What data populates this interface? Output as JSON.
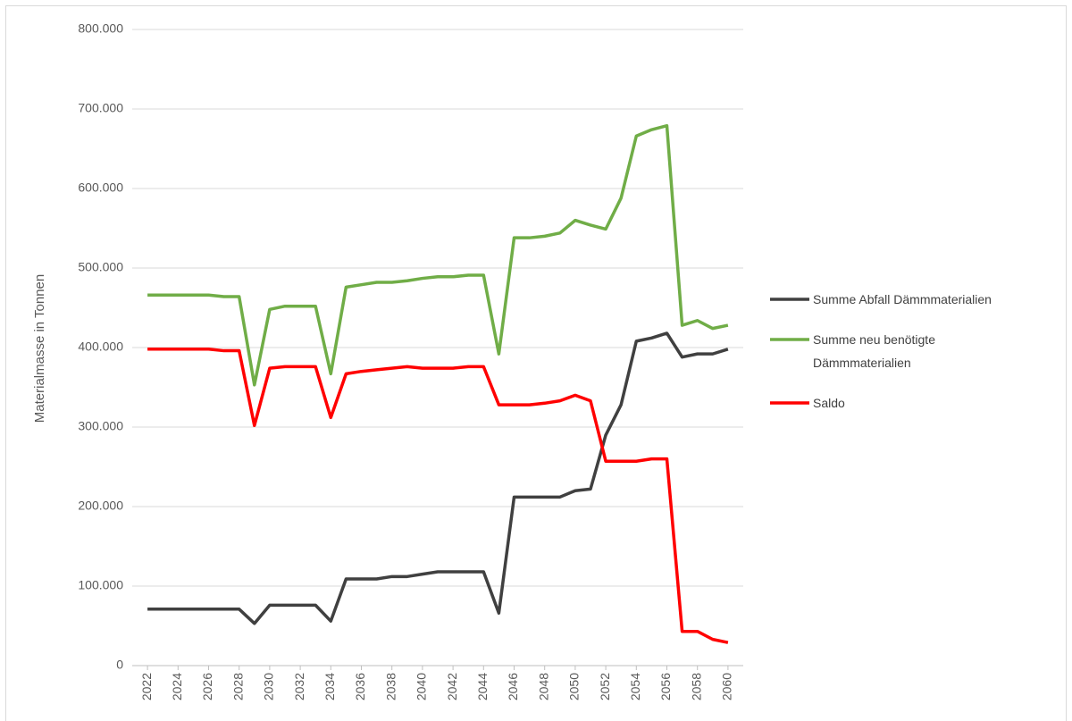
{
  "chart_data": {
    "type": "line",
    "y_label": "Materialmasse in Tonnen",
    "x": [
      2022,
      2023,
      2024,
      2025,
      2026,
      2027,
      2028,
      2029,
      2030,
      2031,
      2032,
      2033,
      2034,
      2035,
      2036,
      2037,
      2038,
      2039,
      2040,
      2041,
      2042,
      2043,
      2044,
      2045,
      2046,
      2047,
      2048,
      2049,
      2050,
      2051,
      2052,
      2053,
      2054,
      2055,
      2056,
      2057,
      2058,
      2059,
      2060
    ],
    "xlim": [
      2021,
      2061
    ],
    "xticks": [
      2022,
      2024,
      2026,
      2028,
      2030,
      2032,
      2034,
      2036,
      2038,
      2040,
      2042,
      2044,
      2046,
      2048,
      2050,
      2052,
      2054,
      2056,
      2058,
      2060
    ],
    "ylim": [
      0,
      800000
    ],
    "yticks": [
      0,
      {
        "value": 100000,
        "label": "100.000"
      },
      {
        "value": 200000,
        "label": "200.000"
      },
      {
        "value": 300000,
        "label": "300.000"
      },
      {
        "value": 400000,
        "label": "400.000"
      },
      {
        "value": 500000,
        "label": "500.000"
      },
      {
        "value": 600000,
        "label": "600.000"
      },
      {
        "value": 700000,
        "label": "700.000"
      },
      {
        "value": 800000,
        "label": "800.000"
      }
    ],
    "grid": true,
    "legend": "right",
    "series": [
      {
        "name": "Summe Abfall Dämmmaterialien",
        "color": "#404040",
        "values": [
          71000,
          71000,
          71000,
          71000,
          71000,
          71000,
          71000,
          53000,
          76000,
          76000,
          76000,
          76000,
          56000,
          109000,
          109000,
          109000,
          112000,
          112000,
          115000,
          118000,
          118000,
          118000,
          118000,
          66000,
          212000,
          212000,
          212000,
          212000,
          220000,
          222000,
          290000,
          328000,
          408000,
          412000,
          418000,
          388000,
          392000,
          392000,
          398000
        ]
      },
      {
        "name": "Summe neu benötigte Dämmmaterialien",
        "color": "#70ad47",
        "values": [
          466000,
          466000,
          466000,
          466000,
          466000,
          464000,
          464000,
          353000,
          448000,
          452000,
          452000,
          452000,
          367000,
          476000,
          479000,
          482000,
          482000,
          484000,
          487000,
          489000,
          489000,
          491000,
          491000,
          392000,
          538000,
          538000,
          540000,
          544000,
          560000,
          554000,
          549000,
          588000,
          666000,
          674000,
          679000,
          428000,
          434000,
          424000,
          428000
        ]
      },
      {
        "name": "Saldo",
        "color": "#ff0000",
        "values": [
          398000,
          398000,
          398000,
          398000,
          398000,
          396000,
          396000,
          302000,
          374000,
          376000,
          376000,
          376000,
          312000,
          367000,
          370000,
          372000,
          374000,
          376000,
          374000,
          374000,
          374000,
          376000,
          376000,
          328000,
          328000,
          328000,
          330000,
          333000,
          340000,
          333000,
          257000,
          257000,
          257000,
          260000,
          260000,
          43000,
          43000,
          33000,
          29000
        ]
      }
    ]
  }
}
